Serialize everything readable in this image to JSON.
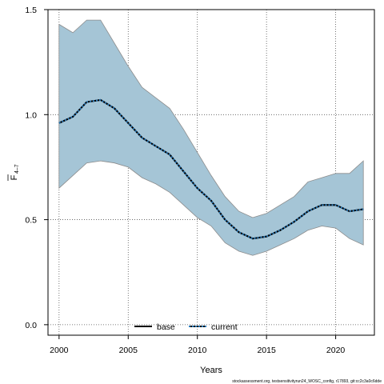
{
  "chart_data": {
    "type": "line",
    "xlabel": "Years",
    "ylabel_main": "F",
    "ylabel_sub": "4–7",
    "xlim": [
      1999.2,
      2022.8
    ],
    "ylim": [
      -0.05,
      1.5
    ],
    "x_ticks": [
      "2000",
      "2005",
      "2010",
      "2015",
      "2020"
    ],
    "y_ticks": [
      "0.0",
      "0.5",
      "1.0",
      "1.5"
    ],
    "grid": true,
    "legend_position": "bottom-center",
    "colors": {
      "band": "#a5c5d6",
      "band_edge": "#8c8c8c",
      "line": "#000000",
      "current_dash": "#2b7ab8"
    },
    "x": [
      2000,
      2001,
      2002,
      2003,
      2004,
      2005,
      2006,
      2007,
      2008,
      2009,
      2010,
      2011,
      2012,
      2013,
      2014,
      2015,
      2016,
      2017,
      2018,
      2019,
      2020,
      2021,
      2022
    ],
    "band_upper": [
      1.43,
      1.39,
      1.45,
      1.45,
      1.34,
      1.23,
      1.13,
      1.08,
      1.03,
      0.93,
      0.82,
      0.71,
      0.61,
      0.54,
      0.51,
      0.53,
      0.57,
      0.61,
      0.68,
      0.7,
      0.72,
      0.72,
      0.78
    ],
    "band_lower": [
      0.65,
      0.71,
      0.77,
      0.78,
      0.77,
      0.75,
      0.7,
      0.67,
      0.63,
      0.57,
      0.51,
      0.47,
      0.39,
      0.35,
      0.33,
      0.35,
      0.38,
      0.41,
      0.45,
      0.47,
      0.46,
      0.41,
      0.38
    ],
    "series": [
      {
        "name": "base",
        "style": "solid",
        "values": [
          0.96,
          0.99,
          1.06,
          1.07,
          1.03,
          0.96,
          0.89,
          0.85,
          0.81,
          0.73,
          0.65,
          0.59,
          0.5,
          0.44,
          0.41,
          0.42,
          0.45,
          0.49,
          0.54,
          0.57,
          0.57,
          0.54,
          0.55
        ]
      },
      {
        "name": "current",
        "style": "dashed",
        "values": [
          0.96,
          0.99,
          1.06,
          1.07,
          1.03,
          0.96,
          0.89,
          0.85,
          0.81,
          0.73,
          0.65,
          0.59,
          0.5,
          0.44,
          0.41,
          0.42,
          0.45,
          0.49,
          0.54,
          0.57,
          0.57,
          0.54,
          0.55
        ]
      }
    ],
    "footer": "stockassessment.org, testsensitivityrun24_WOSC_config, r17893, git:cc2c3a0c6dde"
  }
}
